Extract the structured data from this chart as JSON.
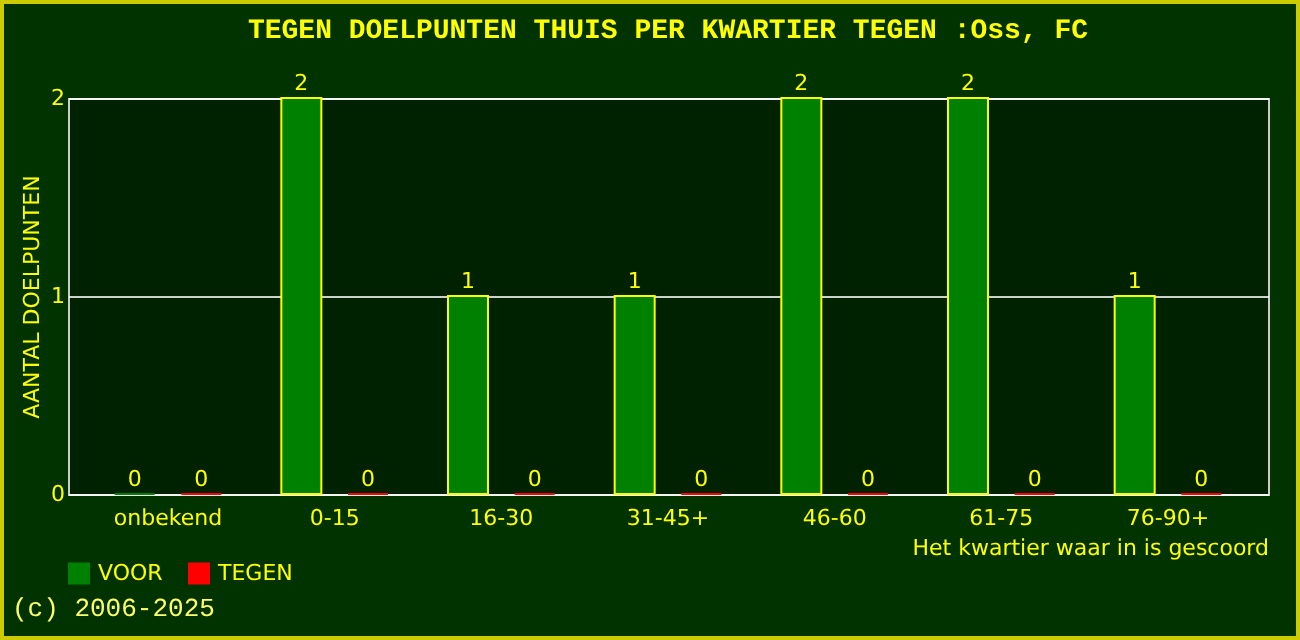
{
  "chart_data": {
    "type": "bar",
    "title": "TEGEN DOELPUNTEN THUIS PER KWARTIER TEGEN :Oss, FC",
    "xlabel": "Het kwartier waar in is gescoord",
    "ylabel": "AANTAL DOELPUNTEN",
    "categories": [
      "onbekend",
      "0-15",
      "16-30",
      "31-45+",
      "46-60",
      "61-75",
      "76-90+"
    ],
    "series": [
      {
        "name": "VOOR",
        "color": "#008000",
        "values": [
          0,
          2,
          1,
          1,
          2,
          2,
          1
        ]
      },
      {
        "name": "TEGEN",
        "color": "#ff0000",
        "values": [
          0,
          0,
          0,
          0,
          0,
          0,
          0
        ]
      }
    ],
    "ylim": [
      0,
      2
    ],
    "yticks": [
      0,
      1,
      2
    ],
    "grid": "y",
    "data_labels": true,
    "legend": "bottom",
    "annotations": [
      "(c) 2006-2025"
    ]
  }
}
